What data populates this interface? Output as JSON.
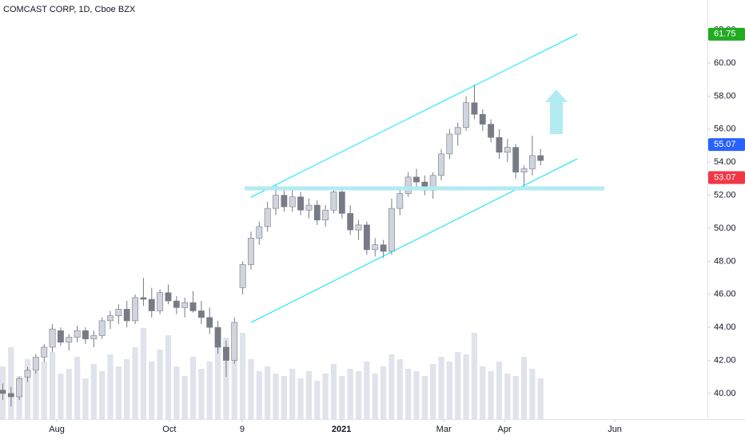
{
  "chart_data": {
    "type": "candlestick",
    "title": "COMCAST CORP, 1D, Cboe BZX",
    "x": [
      1,
      4,
      7,
      10,
      13,
      16,
      19,
      22,
      25,
      28,
      31,
      34,
      37,
      40,
      43,
      46,
      49,
      52,
      55,
      58,
      61,
      64,
      67,
      70,
      73,
      76,
      79,
      82,
      85,
      88,
      91,
      94,
      97,
      100,
      103,
      106,
      109,
      112,
      115,
      118,
      121,
      124,
      127,
      130,
      133,
      136,
      139,
      142,
      145,
      148,
      151,
      154,
      157,
      160,
      163,
      166,
      169,
      172,
      175,
      178,
      181,
      184,
      187,
      190,
      193,
      196
    ],
    "open": [
      40.2,
      40.0,
      39.8,
      41.0,
      41.4,
      42.2,
      42.8,
      43.8,
      43.1,
      43.4,
      43.8,
      43.3,
      43.5,
      44.4,
      44.7,
      45.1,
      44.4,
      45.8,
      45.7,
      45.0,
      46.1,
      45.6,
      45.2,
      45.5,
      45.0,
      44.6,
      44.0,
      42.8,
      42.0,
      46.4,
      47.8,
      49.4,
      50.1,
      51.2,
      52.0,
      51.3,
      51.9,
      51.1,
      51.4,
      50.5,
      51.1,
      52.2,
      50.9,
      49.9,
      50.2,
      48.7,
      49.0,
      48.6,
      51.2,
      52.1,
      53.1,
      52.8,
      52.3,
      53.2,
      54.5,
      55.7,
      56.1,
      57.6,
      56.9,
      56.3,
      55.5,
      54.6,
      54.9,
      53.4,
      53.6,
      54.4
    ],
    "high": [
      40.6,
      40.4,
      41.0,
      41.6,
      42.4,
      43.0,
      44.2,
      44.0,
      43.6,
      44.1,
      44.0,
      43.8,
      44.6,
      45.0,
      45.4,
      45.6,
      46.0,
      47.0,
      46.4,
      46.3,
      46.6,
      45.9,
      45.8,
      46.2,
      45.6,
      45.2,
      44.4,
      43.2,
      44.6,
      48.0,
      49.8,
      50.4,
      51.6,
      52.6,
      52.4,
      52.3,
      52.2,
      51.8,
      51.7,
      51.4,
      52.5,
      52.4,
      51.4,
      50.5,
      50.4,
      49.4,
      49.3,
      51.8,
      52.3,
      53.4,
      53.6,
      53.2,
      53.4,
      54.8,
      56.0,
      56.4,
      58.0,
      58.7,
      57.2,
      56.6,
      56.0,
      55.4,
      55.1,
      53.8,
      55.6,
      54.8
    ],
    "low": [
      39.6,
      39.2,
      39.6,
      40.7,
      41.2,
      41.9,
      42.5,
      42.9,
      42.6,
      43.1,
      43.0,
      42.8,
      43.3,
      43.9,
      44.2,
      44.0,
      44.2,
      45.3,
      44.6,
      44.8,
      45.4,
      44.8,
      44.6,
      44.9,
      44.2,
      43.6,
      42.4,
      41.0,
      41.8,
      46.0,
      47.5,
      49.0,
      49.8,
      50.8,
      51.0,
      51.0,
      50.8,
      50.6,
      50.2,
      50.1,
      50.9,
      50.6,
      49.6,
      49.3,
      48.4,
      48.3,
      48.2,
      48.4,
      50.8,
      51.9,
      52.4,
      52.0,
      51.8,
      52.9,
      54.2,
      55.0,
      55.9,
      56.6,
      55.9,
      55.2,
      54.2,
      54.0,
      53.0,
      52.4,
      53.2,
      53.8
    ],
    "close": [
      40.0,
      39.8,
      40.9,
      41.4,
      42.2,
      42.8,
      43.9,
      43.1,
      43.4,
      43.8,
      43.3,
      43.5,
      44.4,
      44.7,
      45.1,
      44.4,
      45.8,
      45.7,
      45.0,
      46.1,
      45.6,
      45.2,
      45.5,
      45.0,
      44.6,
      44.0,
      42.8,
      42.0,
      44.3,
      47.8,
      49.4,
      50.1,
      51.2,
      52.0,
      51.3,
      51.9,
      51.1,
      51.4,
      50.5,
      51.1,
      52.2,
      50.9,
      49.9,
      50.2,
      48.7,
      49.0,
      48.6,
      51.2,
      52.1,
      53.1,
      52.8,
      52.3,
      53.2,
      54.5,
      55.7,
      56.1,
      57.6,
      56.9,
      56.3,
      55.5,
      54.6,
      54.9,
      53.4,
      53.6,
      54.4,
      54.1
    ],
    "volume": [
      22,
      30,
      18,
      25,
      20,
      24,
      28,
      19,
      21,
      26,
      17,
      23,
      20,
      27,
      22,
      25,
      30,
      38,
      24,
      29,
      35,
      22,
      18,
      26,
      21,
      24,
      31,
      34,
      27,
      36,
      25,
      20,
      22,
      19,
      18,
      21,
      17,
      20,
      16,
      19,
      23,
      18,
      21,
      20,
      24,
      19,
      22,
      27,
      25,
      21,
      20,
      18,
      23,
      26,
      24,
      28,
      27,
      36,
      22,
      20,
      24,
      19,
      18,
      26,
      21,
      17
    ],
    "up_color": "#d1d4dc",
    "down_color": "#787b86",
    "volume_color": "#e0e3eb",
    "xlim": [
      0,
      256.5
    ],
    "xticks": [
      {
        "value": 20.6,
        "label": "Aug"
      },
      {
        "value": 61.4,
        "label": "Oct"
      },
      {
        "value": 87.8,
        "label": "9"
      },
      {
        "value": 123.8,
        "label": "2021"
      },
      {
        "value": 160.9,
        "label": "Mar"
      },
      {
        "value": 182.9,
        "label": "Apr"
      },
      {
        "value": 222.9,
        "label": "Jun"
      }
    ],
    "ylim": [
      38.45,
      63.82
    ],
    "yticks": [
      {
        "value": 40,
        "label": "40.00"
      },
      {
        "value": 42,
        "label": "42.00"
      },
      {
        "value": 44,
        "label": "44.00"
      },
      {
        "value": 46,
        "label": "46.00"
      },
      {
        "value": 48,
        "label": "48.00"
      },
      {
        "value": 50,
        "label": "50.00"
      },
      {
        "value": 52,
        "label": "52.00"
      },
      {
        "value": 54,
        "label": "54.00"
      },
      {
        "value": 56,
        "label": "56.00"
      },
      {
        "value": 58,
        "label": "58.00"
      },
      {
        "value": 60,
        "label": "60.00"
      },
      {
        "value": 62,
        "label": "62.00"
      }
    ],
    "price_labels": [
      {
        "value": 61.75,
        "color": "#22ab22"
      },
      {
        "value": 55.07,
        "color": "#2962ff"
      },
      {
        "value": 53.07,
        "color": "#f23645"
      }
    ]
  }
}
